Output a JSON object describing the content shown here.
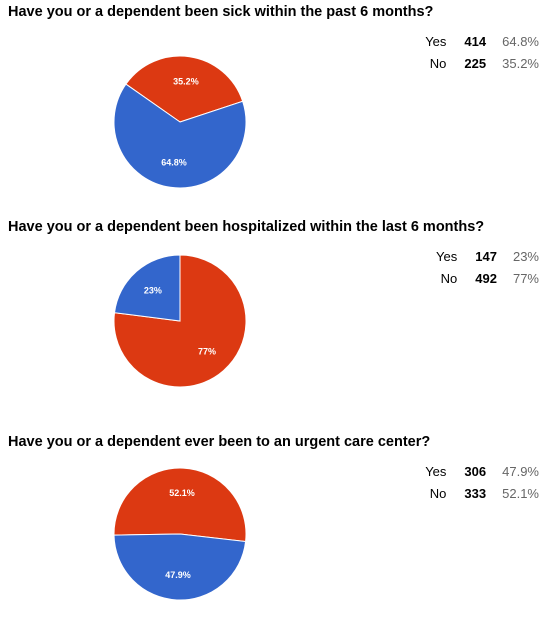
{
  "chart_data": [
    {
      "type": "pie",
      "title": "Have you or a dependent been sick within the past 6 months?",
      "colors": {
        "Yes": "#3366cc",
        "No": "#dc3912"
      },
      "slices": [
        {
          "label": "Yes",
          "count": 414,
          "percent_label": "64.8%",
          "value": 64.8
        },
        {
          "label": "No",
          "count": 225,
          "percent_label": "35.2%",
          "value": 35.2
        }
      ]
    },
    {
      "type": "pie",
      "title": "Have you or a dependent been hospitalized within the last 6 months?",
      "colors": {
        "Yes": "#3366cc",
        "No": "#dc3912"
      },
      "slices": [
        {
          "label": "Yes",
          "count": 147,
          "percent_label": "23%",
          "value": 23
        },
        {
          "label": "No",
          "count": 492,
          "percent_label": "77%",
          "value": 77
        }
      ]
    },
    {
      "type": "pie",
      "title": "Have you or a dependent ever been to an urgent care center?",
      "colors": {
        "Yes": "#3366cc",
        "No": "#dc3912"
      },
      "slices": [
        {
          "label": "Yes",
          "count": 306,
          "percent_label": "47.9%",
          "value": 47.9
        },
        {
          "label": "No",
          "count": 333,
          "percent_label": "52.1%",
          "value": 52.1
        }
      ]
    }
  ]
}
